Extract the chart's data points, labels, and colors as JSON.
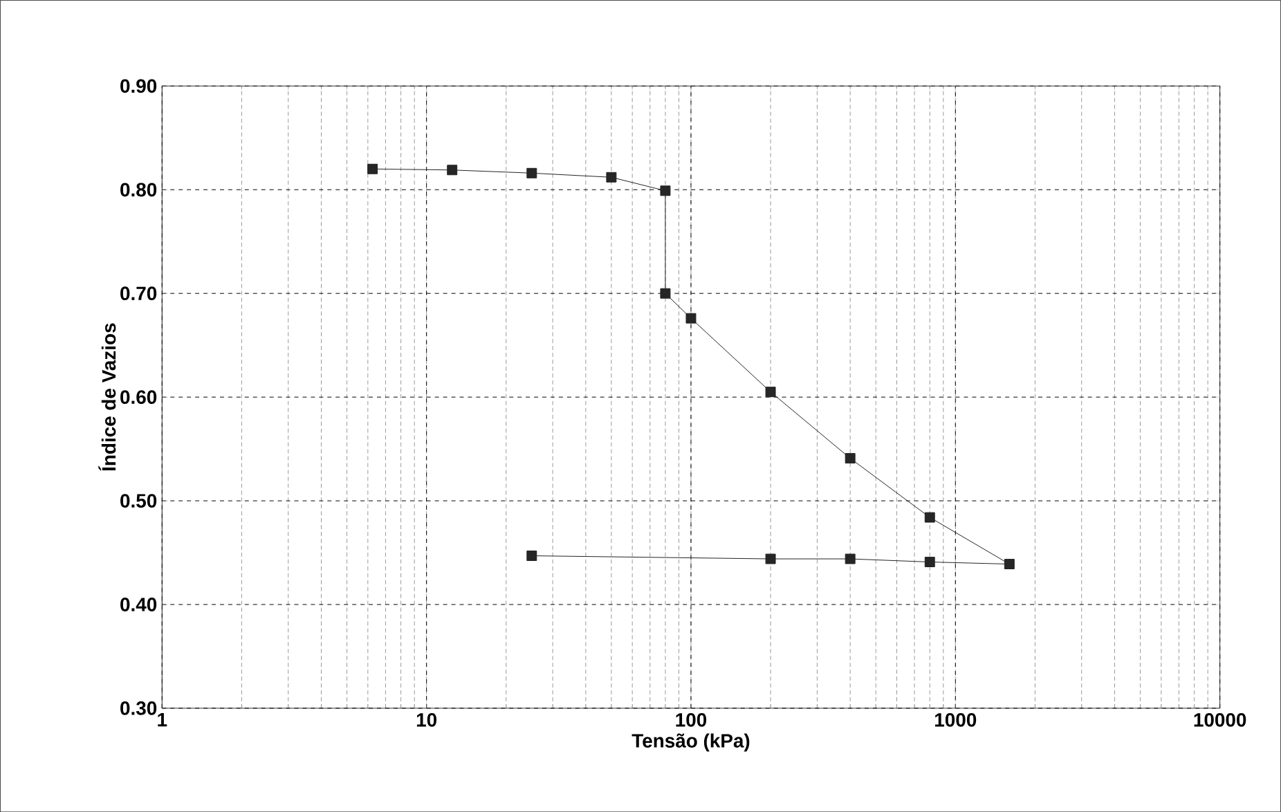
{
  "chart_data": {
    "type": "line",
    "xlabel": "Tensão (kPa)",
    "ylabel": "Índice de Vazios",
    "x": [
      6.25,
      12.5,
      25,
      50,
      80,
      80,
      100,
      200,
      400,
      800,
      1600,
      800,
      400,
      200,
      25
    ],
    "series": [
      {
        "color": "#222222",
        "values": [
          0.82,
          0.819,
          0.816,
          0.812,
          0.799,
          0.7,
          0.676,
          0.605,
          0.541,
          0.484,
          0.439,
          0.441,
          0.444,
          0.444,
          0.447
        ]
      }
    ],
    "log": "x",
    "xlim": [
      1,
      10000
    ],
    "xticks": [
      1,
      10,
      100,
      1000,
      10000
    ],
    "ylim": [
      0.3,
      0.9
    ],
    "yticks": [
      {
        "value": 0.3,
        "label": "0.30"
      },
      {
        "value": 0.4,
        "label": "0.40"
      },
      {
        "value": 0.5,
        "label": "0.50"
      },
      {
        "value": 0.6,
        "label": "0.60"
      },
      {
        "value": 0.7,
        "label": "0.70"
      },
      {
        "value": 0.8,
        "label": "0.80"
      },
      {
        "value": 0.9,
        "label": "0.90"
      }
    ],
    "grid": true,
    "marker": "square",
    "line_style": "solid"
  }
}
